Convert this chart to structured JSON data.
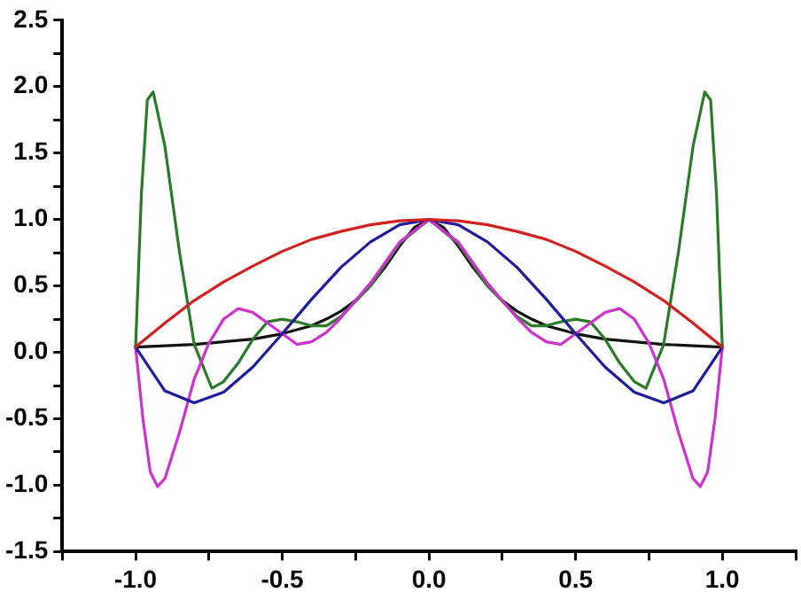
{
  "chart_data": {
    "type": "line",
    "xlim": [
      -1.25,
      1.25
    ],
    "ylim": [
      -1.5,
      2.5
    ],
    "xticks": [
      {
        "value": -1.25,
        "label": null
      },
      {
        "value": -1,
        "label": "-1.0"
      },
      {
        "value": -0.75,
        "label": null
      },
      -0.5,
      {
        "value": -0.25,
        "label": null
      },
      {
        "value": 0,
        "label": "0.0"
      },
      {
        "value": 0.25,
        "label": null
      },
      0.5,
      {
        "value": 0.75,
        "label": null
      },
      {
        "value": 1,
        "label": "1.0"
      },
      {
        "value": 1.25,
        "label": null
      }
    ],
    "yticks": [
      -1.5,
      {
        "value": -1.25,
        "label": null
      },
      {
        "value": -1,
        "label": "-1.0"
      },
      {
        "value": -0.75,
        "label": null
      },
      -0.5,
      {
        "value": -0.25,
        "label": null
      },
      {
        "value": 0,
        "label": "0.0"
      },
      {
        "value": 0.25,
        "label": null
      },
      0.5,
      {
        "value": 0.75,
        "label": null
      },
      {
        "value": 1,
        "label": "1.0"
      },
      {
        "value": 1.25,
        "label": null
      },
      1.5,
      {
        "value": 1.75,
        "label": null
      },
      {
        "value": 2,
        "label": "2.0"
      },
      {
        "value": 2.25,
        "label": null
      },
      2.5
    ],
    "grid": false,
    "legend": false,
    "marker": "none",
    "line_style": "solid",
    "series": [
      {
        "color": "#d02020",
        "x": [
          -1,
          -0.9,
          -0.8,
          -0.7,
          -0.6,
          -0.5,
          -0.4,
          -0.3,
          -0.2,
          -0.1,
          0,
          0.1,
          0.2,
          0.3,
          0.4,
          0.5,
          0.6,
          0.7,
          0.8,
          0.9,
          1
        ],
        "values": [
          0.04,
          0.22,
          0.39,
          0.53,
          0.65,
          0.76,
          0.85,
          0.91,
          0.96,
          0.99,
          1,
          0.99,
          0.96,
          0.91,
          0.85,
          0.76,
          0.65,
          0.53,
          0.39,
          0.22,
          0.04
        ]
      },
      {
        "color": "#1c1c9c",
        "x": [
          -1,
          -0.9,
          -0.8,
          -0.7,
          -0.6,
          -0.5,
          -0.4,
          -0.3,
          -0.2,
          -0.1,
          0,
          0.1,
          0.2,
          0.3,
          0.4,
          0.5,
          0.6,
          0.7,
          0.8,
          0.9,
          1
        ],
        "values": [
          0.04,
          -0.29,
          -0.38,
          -0.3,
          -0.11,
          0.14,
          0.4,
          0.64,
          0.83,
          0.96,
          1,
          0.96,
          0.83,
          0.64,
          0.4,
          0.14,
          -0.11,
          -0.3,
          -0.38,
          -0.29,
          0.04
        ]
      },
      {
        "color": "#cc33cc",
        "x": [
          -1,
          -0.975,
          -0.95,
          -0.925,
          -0.9,
          -0.85,
          -0.8,
          -0.75,
          -0.7,
          -0.65,
          -0.6,
          -0.55,
          -0.5,
          -0.45,
          -0.4,
          -0.35,
          -0.3,
          -0.25,
          -0.2,
          -0.1,
          0,
          0.1,
          0.2,
          0.25,
          0.3,
          0.35,
          0.4,
          0.45,
          0.5,
          0.55,
          0.6,
          0.65,
          0.7,
          0.75,
          0.8,
          0.85,
          0.9,
          0.925,
          0.95,
          0.975,
          1
        ],
        "values": [
          0.04,
          -0.5,
          -0.9,
          -1.01,
          -0.95,
          -0.6,
          -0.2,
          0.07,
          0.25,
          0.33,
          0.3,
          0.22,
          0.14,
          0.06,
          0.08,
          0.15,
          0.26,
          0.39,
          0.52,
          0.83,
          1,
          0.83,
          0.52,
          0.39,
          0.26,
          0.15,
          0.08,
          0.06,
          0.14,
          0.22,
          0.3,
          0.33,
          0.25,
          0.07,
          -0.2,
          -0.6,
          -0.95,
          -1.01,
          -0.9,
          -0.5,
          0.04
        ]
      },
      {
        "color": "#2a7a2a",
        "x": [
          -1,
          -0.98,
          -0.96,
          -0.94,
          -0.9,
          -0.85,
          -0.8,
          -0.74,
          -0.7,
          -0.65,
          -0.6,
          -0.55,
          -0.5,
          -0.45,
          -0.4,
          -0.35,
          -0.3,
          -0.2,
          -0.1,
          0,
          0.1,
          0.2,
          0.3,
          0.35,
          0.4,
          0.45,
          0.5,
          0.55,
          0.6,
          0.65,
          0.7,
          0.74,
          0.8,
          0.85,
          0.9,
          0.94,
          0.96,
          0.98,
          1
        ],
        "values": [
          0.04,
          1.2,
          1.9,
          1.96,
          1.55,
          0.75,
          0.06,
          -0.27,
          -0.22,
          -0.08,
          0.1,
          0.23,
          0.25,
          0.23,
          0.2,
          0.2,
          0.27,
          0.5,
          0.82,
          1,
          0.82,
          0.5,
          0.27,
          0.2,
          0.2,
          0.23,
          0.25,
          0.23,
          0.1,
          -0.08,
          -0.22,
          -0.27,
          0.06,
          0.75,
          1.55,
          1.96,
          1.9,
          1.2,
          0.04
        ]
      },
      {
        "color": "#111111",
        "x": [
          -1,
          -0.9,
          -0.8,
          -0.7,
          -0.6,
          -0.5,
          -0.45,
          -0.4,
          -0.35,
          -0.3,
          -0.25,
          -0.2,
          -0.15,
          -0.1,
          -0.05,
          0,
          0.05,
          0.1,
          0.15,
          0.2,
          0.25,
          0.3,
          0.35,
          0.4,
          0.45,
          0.5,
          0.6,
          0.7,
          0.8,
          0.9,
          1
        ],
        "values": [
          0.04,
          0.05,
          0.06,
          0.08,
          0.1,
          0.14,
          0.17,
          0.2,
          0.25,
          0.31,
          0.39,
          0.5,
          0.64,
          0.8,
          0.94,
          1,
          0.94,
          0.8,
          0.64,
          0.5,
          0.39,
          0.31,
          0.25,
          0.2,
          0.17,
          0.14,
          0.1,
          0.08,
          0.06,
          0.05,
          0.04
        ]
      }
    ]
  }
}
